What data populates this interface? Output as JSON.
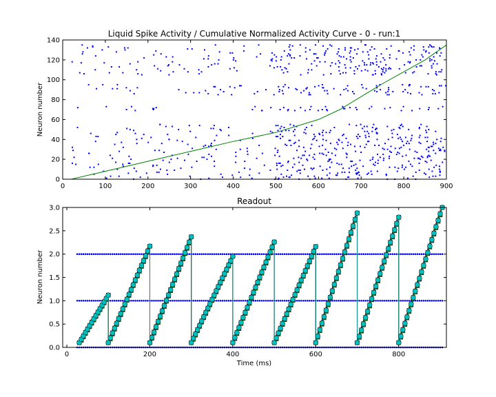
{
  "chart_data": [
    {
      "type": "scatter",
      "title": "Liquid Spike Activity / Cumulative Normalized Activity Curve - 0 - run:1",
      "xlabel": "",
      "ylabel": "Neuron number",
      "xlim": [
        0,
        900
      ],
      "ylim": [
        0,
        140
      ],
      "xticks": [
        "0",
        "100",
        "200",
        "300",
        "400",
        "500",
        "600",
        "700",
        "800",
        "900"
      ],
      "yticks": [
        "0",
        "20",
        "40",
        "60",
        "80",
        "100",
        "120",
        "140"
      ],
      "grid": false,
      "spike_color": "#0000ff",
      "curve_color": "#008000",
      "spike_density": [
        {
          "t_start": 20,
          "t_end": 500,
          "spikes_per_neuron_per_100ms": 0.55
        },
        {
          "t_start": 500,
          "t_end": 900,
          "spikes_per_neuron_per_100ms": 1.6
        }
      ],
      "neuron_rows_excluded": [
        [
          56,
          68
        ],
        [
          74,
          84
        ],
        [
          96,
          104
        ]
      ],
      "cumulative_curve": {
        "x": [
          20,
          100,
          200,
          300,
          400,
          500,
          600,
          650,
          700,
          750,
          800,
          850,
          900
        ],
        "y": [
          0,
          8,
          18,
          28,
          38,
          47,
          60,
          70,
          83,
          96,
          108,
          120,
          135
        ]
      }
    },
    {
      "type": "line",
      "title": "Readout",
      "xlabel": "Time (ms)",
      "ylabel": "Neuron number",
      "xlim": [
        -10,
        915
      ],
      "ylim": [
        0,
        3.0
      ],
      "xticks": [
        "0",
        "200",
        "400",
        "600",
        "800"
      ],
      "yticks": [
        "0.0",
        "0.5",
        "1.0",
        "1.5",
        "2.0",
        "2.5",
        "3.0"
      ],
      "grid": false,
      "reset_times": [
        30,
        100,
        200,
        300,
        400,
        500,
        600,
        700,
        800
      ],
      "ramp_step_ms": 5,
      "ramp_start_value": 0.1,
      "segments": [
        {
          "t_start": 30,
          "t_end": 100,
          "peak": 1.12
        },
        {
          "t_start": 100,
          "t_end": 200,
          "peak": 2.17
        },
        {
          "t_start": 200,
          "t_end": 300,
          "peak": 2.37
        },
        {
          "t_start": 300,
          "t_end": 400,
          "peak": 1.95
        },
        {
          "t_start": 400,
          "t_end": 500,
          "peak": 2.26
        },
        {
          "t_start": 500,
          "t_end": 600,
          "peak": 2.16
        },
        {
          "t_start": 600,
          "t_end": 700,
          "peak": 2.88
        },
        {
          "t_start": 700,
          "t_end": 800,
          "peak": 2.79
        },
        {
          "t_start": 800,
          "t_end": 905,
          "peak": 3.0
        }
      ],
      "target_lines": [
        {
          "value": 2.0,
          "t_start": 25,
          "t_end": 905
        },
        {
          "value": 1.0,
          "t_start": 25,
          "t_end": 905
        },
        {
          "value": 0.0,
          "t_start": 25,
          "t_end": 905
        }
      ],
      "series": [
        {
          "marker": "star",
          "color": "#ff0000",
          "line_color": "#cc0000"
        },
        {
          "marker": "square",
          "color": "#008000",
          "line_color": "#006400"
        },
        {
          "marker": "circle",
          "color": "#00bfbf",
          "line_color": "#008b8b"
        }
      ],
      "target_color": "#0000ff"
    }
  ]
}
